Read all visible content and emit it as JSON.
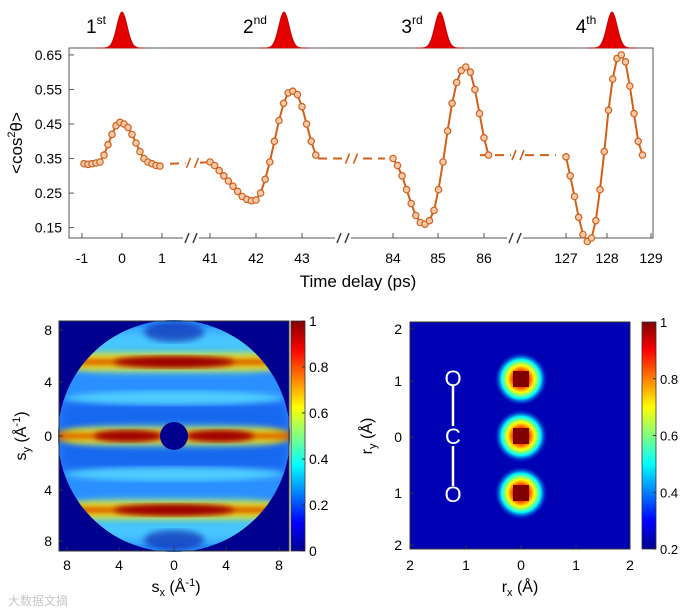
{
  "chart_data": [
    {
      "type": "line",
      "title": "",
      "xlabel": "Time delay (ps)",
      "ylabel": "<cos²θ>",
      "ylim": [
        0.12,
        0.67
      ],
      "yticks": [
        "0.15",
        "0.25",
        "0.35",
        "0.45",
        "0.55",
        "0.65"
      ],
      "pulse_labels": [
        {
          "base": "1",
          "sup": "st"
        },
        {
          "base": "2",
          "sup": "nd"
        },
        {
          "base": "3",
          "sup": "rd"
        },
        {
          "base": "4",
          "sup": "th"
        }
      ],
      "segments": [
        {
          "xticks": [
            "-1",
            "0",
            "1"
          ],
          "xrange": [
            -1,
            1
          ],
          "x": [
            -0.95,
            -0.85,
            -0.75,
            -0.65,
            -0.55,
            -0.45,
            -0.35,
            -0.25,
            -0.15,
            -0.05,
            0.05,
            0.15,
            0.25,
            0.35,
            0.45,
            0.55,
            0.65,
            0.75,
            0.85,
            0.95
          ],
          "y": [
            0.335,
            0.333,
            0.335,
            0.337,
            0.34,
            0.36,
            0.39,
            0.42,
            0.445,
            0.455,
            0.45,
            0.44,
            0.42,
            0.395,
            0.37,
            0.35,
            0.34,
            0.335,
            0.33,
            0.328
          ]
        },
        {
          "xticks": [
            "41",
            "42",
            "43"
          ],
          "xrange": [
            40.75,
            43.75
          ],
          "x": [
            41.0,
            41.1,
            41.2,
            41.3,
            41.4,
            41.5,
            41.6,
            41.7,
            41.8,
            41.9,
            42.0,
            42.1,
            42.2,
            42.3,
            42.4,
            42.5,
            42.6,
            42.7,
            42.8,
            42.9,
            43.0,
            43.1,
            43.2,
            43.3
          ],
          "y": [
            0.34,
            0.33,
            0.315,
            0.3,
            0.285,
            0.27,
            0.255,
            0.24,
            0.232,
            0.228,
            0.23,
            0.25,
            0.29,
            0.34,
            0.4,
            0.46,
            0.51,
            0.54,
            0.545,
            0.535,
            0.5,
            0.45,
            0.4,
            0.36
          ]
        },
        {
          "xticks": [
            "84",
            "85",
            "86"
          ],
          "xrange": [
            83.55,
            86.55
          ],
          "x": [
            84.0,
            84.1,
            84.2,
            84.3,
            84.4,
            84.5,
            84.6,
            84.7,
            84.8,
            84.9,
            85.0,
            85.1,
            85.2,
            85.3,
            85.4,
            85.5,
            85.6,
            85.7,
            85.8,
            85.9,
            86.0,
            86.1
          ],
          "y": [
            0.35,
            0.33,
            0.3,
            0.26,
            0.22,
            0.185,
            0.165,
            0.16,
            0.17,
            0.2,
            0.26,
            0.34,
            0.43,
            0.51,
            0.57,
            0.605,
            0.615,
            0.6,
            0.55,
            0.48,
            0.41,
            0.36
          ]
        },
        {
          "xticks": [
            "127",
            "128",
            "129"
          ],
          "xrange": [
            126.0,
            129.2
          ],
          "x": [
            127.0,
            127.1,
            127.2,
            127.3,
            127.4,
            127.5,
            127.6,
            127.7,
            127.8,
            127.9,
            128.0,
            128.1,
            128.2,
            128.3,
            128.4,
            128.5,
            128.6,
            128.7,
            128.8
          ],
          "y": [
            0.355,
            0.3,
            0.24,
            0.18,
            0.13,
            0.11,
            0.12,
            0.17,
            0.26,
            0.37,
            0.49,
            0.58,
            0.64,
            0.65,
            0.63,
            0.56,
            0.48,
            0.4,
            0.36
          ]
        }
      ],
      "gap_breaks": [
        {
          "from": [
            1.3,
            0.335
          ],
          "to": [
            40.95,
            0.34
          ]
        },
        {
          "from": [
            43.3,
            0.35
          ],
          "to": [
            84.0,
            0.35
          ]
        },
        {
          "from": [
            86.1,
            0.36
          ],
          "to": [
            127.0,
            0.36
          ]
        }
      ],
      "color": "#D2601A"
    },
    {
      "type": "heatmap",
      "xlabel": "s_x (Å⁻¹)",
      "ylabel": "s_y (Å⁻¹)",
      "xticks": [
        "8",
        "4",
        "0",
        "4",
        "8"
      ],
      "yticks": [
        "8",
        "4",
        "0",
        "4",
        "8"
      ],
      "colorbar_ticks": [
        "0",
        "0.2",
        "0.4",
        "0.6",
        "0.8",
        "1"
      ],
      "clim": [
        0,
        1
      ]
    },
    {
      "type": "heatmap",
      "xlabel": "r_x (Å)",
      "ylabel": "r_y (Å)",
      "xticks": [
        "2",
        "1",
        "0",
        "1",
        "2"
      ],
      "yticks": [
        "2",
        "1",
        "0",
        "1",
        "2"
      ],
      "colorbar_ticks": [
        "0.2",
        "0.4",
        "0.6",
        "0.8",
        "1"
      ],
      "clim": [
        0.2,
        1
      ],
      "atoms": [
        "O",
        "C",
        "O"
      ]
    }
  ],
  "watermark": "大数据文摘"
}
